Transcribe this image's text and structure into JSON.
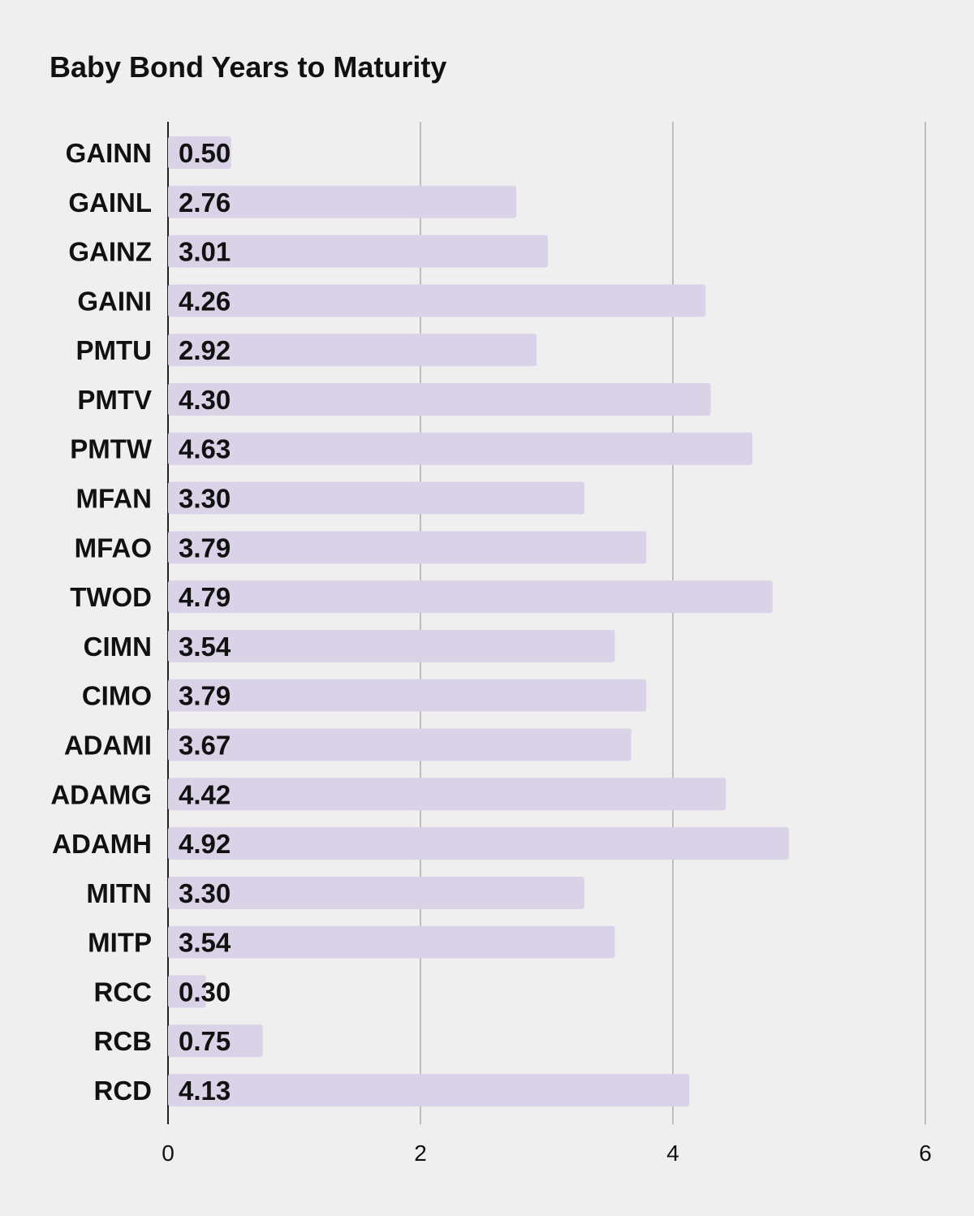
{
  "chart_data": {
    "type": "bar",
    "orientation": "horizontal",
    "title": "Baby Bond Years to Maturity",
    "xlabel": "",
    "ylabel": "",
    "xlim": [
      0,
      6
    ],
    "xticks": [
      0,
      2,
      4,
      6
    ],
    "grid": true,
    "bar_color": "#dad3e8",
    "categories": [
      "GAINN",
      "GAINL",
      "GAINZ",
      "GAINI",
      "PMTU",
      "PMTV",
      "PMTW",
      "MFAN",
      "MFAO",
      "TWOD",
      "CIMN",
      "CIMO",
      "ADAMI",
      "ADAMG",
      "ADAMH",
      "MITN",
      "MITP",
      "RCC",
      "RCB",
      "RCD"
    ],
    "values": [
      0.5,
      2.76,
      3.01,
      4.26,
      2.92,
      4.3,
      4.63,
      3.3,
      3.79,
      4.79,
      3.54,
      3.79,
      3.67,
      4.42,
      4.92,
      3.3,
      3.54,
      0.3,
      0.75,
      4.13
    ],
    "value_labels": [
      "0.50",
      "2.76",
      "3.01",
      "4.26",
      "2.92",
      "4.30",
      "4.63",
      "3.30",
      "3.79",
      "4.79",
      "3.54",
      "3.79",
      "3.67",
      "4.42",
      "4.92",
      "3.30",
      "3.54",
      "0.30",
      "0.75",
      "4.13"
    ]
  }
}
